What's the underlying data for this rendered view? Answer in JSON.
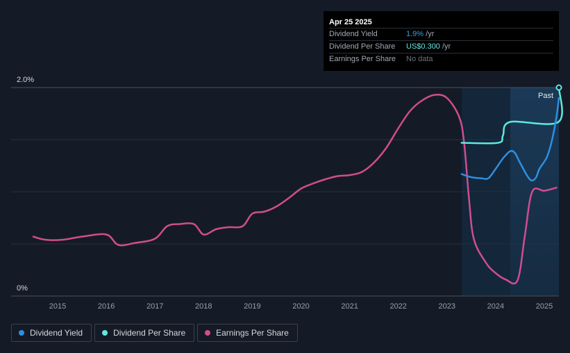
{
  "tooltip": {
    "date": "Apr 25 2025",
    "rows": [
      {
        "label": "Dividend Yield",
        "value": "1.9%",
        "unit": " /yr"
      },
      {
        "label": "Dividend Per Share",
        "value": "US$0.300",
        "unit": " /yr"
      },
      {
        "label": "Earnings Per Share",
        "value": "No data",
        "unit": ""
      }
    ]
  },
  "past_label": "Past",
  "legend": [
    {
      "label": "Dividend Yield",
      "color": "#2e8fe0"
    },
    {
      "label": "Dividend Per Share",
      "color": "#5ee9e0"
    },
    {
      "label": "Earnings Per Share",
      "color": "#d04d8e"
    }
  ],
  "colors": {
    "background": "#151b26",
    "forecast_shade": "#17324a",
    "dividend_yield": "#2e8fe0",
    "dividend_per_share": "#5ee9e0",
    "earnings_per_share": "#d04d8e"
  },
  "chart_data": {
    "type": "line",
    "x_axis": {
      "ticks": [
        "2015",
        "2016",
        "2017",
        "2018",
        "2019",
        "2020",
        "2021",
        "2022",
        "2023",
        "2024",
        "2025"
      ],
      "range": [
        2014.5,
        2025.3
      ]
    },
    "y_axis": {
      "tick_labels": [
        "0%",
        "2.0%"
      ],
      "range": [
        0,
        2.0
      ],
      "unit": "%",
      "grid": true
    },
    "series": [
      {
        "name": "Dividend Yield",
        "unit": "%",
        "points": [
          [
            2023.3,
            1.17
          ],
          [
            2023.5,
            1.14
          ],
          [
            2023.7,
            1.13
          ],
          [
            2023.85,
            1.13
          ],
          [
            2024.0,
            1.22
          ],
          [
            2024.15,
            1.32
          ],
          [
            2024.3,
            1.39
          ],
          [
            2024.4,
            1.37
          ],
          [
            2024.5,
            1.28
          ],
          [
            2024.7,
            1.12
          ],
          [
            2024.82,
            1.13
          ],
          [
            2024.9,
            1.22
          ],
          [
            2025.05,
            1.33
          ],
          [
            2025.15,
            1.48
          ],
          [
            2025.25,
            1.72
          ],
          [
            2025.3,
            1.9
          ]
        ]
      },
      {
        "name": "Dividend Per Share",
        "unit": "US$",
        "points": [
          [
            2023.3,
            1.47
          ],
          [
            2024.05,
            1.47
          ],
          [
            2024.15,
            1.54
          ],
          [
            2024.3,
            1.67
          ],
          [
            2025.29,
            1.67
          ],
          [
            2025.3,
            2.0
          ]
        ]
      },
      {
        "name": "Earnings Per Share",
        "unit": "US$",
        "points": [
          [
            2014.5,
            0.57
          ],
          [
            2014.75,
            0.54
          ],
          [
            2015.1,
            0.54
          ],
          [
            2015.5,
            0.57
          ],
          [
            2016.0,
            0.59
          ],
          [
            2016.25,
            0.49
          ],
          [
            2016.6,
            0.51
          ],
          [
            2017.0,
            0.55
          ],
          [
            2017.25,
            0.67
          ],
          [
            2017.5,
            0.69
          ],
          [
            2017.8,
            0.69
          ],
          [
            2018.0,
            0.59
          ],
          [
            2018.25,
            0.64
          ],
          [
            2018.5,
            0.66
          ],
          [
            2018.8,
            0.67
          ],
          [
            2019.0,
            0.79
          ],
          [
            2019.25,
            0.81
          ],
          [
            2019.5,
            0.86
          ],
          [
            2019.75,
            0.94
          ],
          [
            2020.0,
            1.03
          ],
          [
            2020.25,
            1.08
          ],
          [
            2020.5,
            1.12
          ],
          [
            2020.75,
            1.15
          ],
          [
            2021.0,
            1.16
          ],
          [
            2021.25,
            1.19
          ],
          [
            2021.5,
            1.28
          ],
          [
            2021.75,
            1.42
          ],
          [
            2022.0,
            1.61
          ],
          [
            2022.25,
            1.78
          ],
          [
            2022.5,
            1.88
          ],
          [
            2022.75,
            1.93
          ],
          [
            2023.0,
            1.9
          ],
          [
            2023.25,
            1.72
          ],
          [
            2023.35,
            1.48
          ],
          [
            2023.45,
            0.95
          ],
          [
            2023.55,
            0.55
          ],
          [
            2023.8,
            0.32
          ],
          [
            2024.0,
            0.22
          ],
          [
            2024.2,
            0.16
          ],
          [
            2024.45,
            0.15
          ],
          [
            2024.6,
            0.58
          ],
          [
            2024.75,
            1.0
          ],
          [
            2025.0,
            1.01
          ],
          [
            2025.25,
            1.04
          ]
        ]
      }
    ]
  }
}
